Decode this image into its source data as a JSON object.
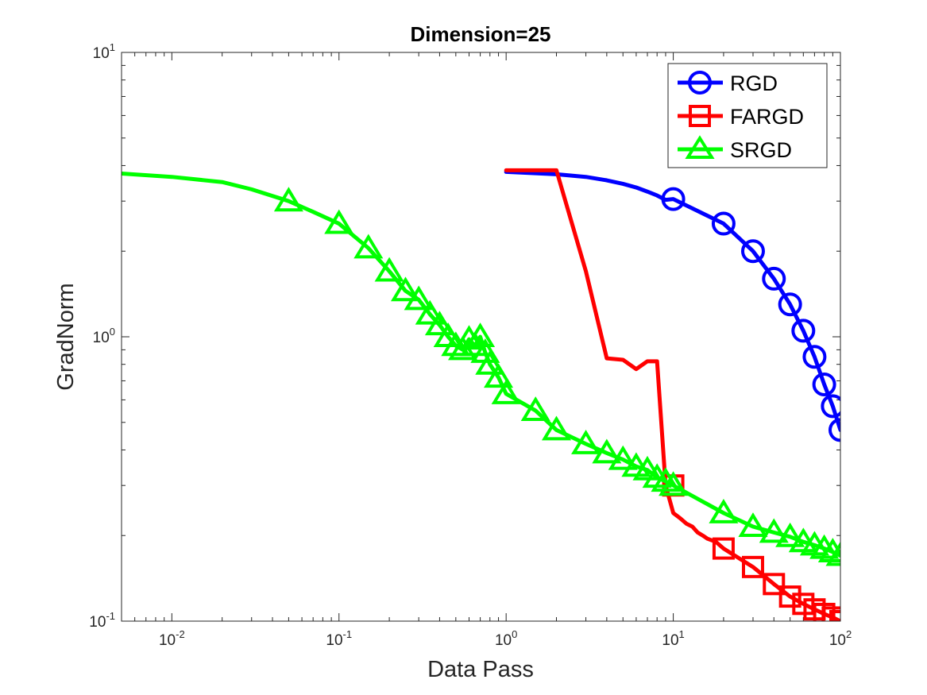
{
  "chart_data": {
    "type": "line",
    "title": "Dimension=25",
    "xlabel": "Data Pass",
    "ylabel": "GradNorm",
    "xscale": "log",
    "yscale": "log",
    "xlim": [
      0.005,
      100
    ],
    "ylim": [
      0.1,
      10
    ],
    "x_ticks": [
      {
        "base": "10",
        "exp": "-2",
        "value": 0.01
      },
      {
        "base": "10",
        "exp": "-1",
        "value": 0.1
      },
      {
        "base": "10",
        "exp": "0",
        "value": 1
      },
      {
        "base": "10",
        "exp": "1",
        "value": 10
      },
      {
        "base": "10",
        "exp": "2",
        "value": 100
      }
    ],
    "y_ticks": [
      {
        "base": "10",
        "exp": "-1",
        "value": 0.1
      },
      {
        "base": "10",
        "exp": "0",
        "value": 1
      },
      {
        "base": "10",
        "exp": "1",
        "value": 10
      }
    ],
    "legend_position": "top-right",
    "series": [
      {
        "name": "RGD",
        "color": "#0000ff",
        "marker": "circle",
        "x": [
          1,
          2,
          3,
          4,
          5,
          6,
          7,
          8,
          9,
          10,
          20,
          30,
          40,
          50,
          60,
          70,
          80,
          90,
          100
        ],
        "y": [
          3.8,
          3.73,
          3.65,
          3.55,
          3.45,
          3.35,
          3.24,
          3.14,
          3.03,
          3.05,
          2.5,
          2.0,
          1.6,
          1.3,
          1.05,
          0.85,
          0.68,
          0.57,
          0.47
        ],
        "marker_x": [
          10,
          20,
          30,
          40,
          50,
          60,
          70,
          80,
          90,
          100
        ],
        "marker_y": [
          3.05,
          2.5,
          2.0,
          1.6,
          1.3,
          1.05,
          0.85,
          0.68,
          0.57,
          0.47
        ]
      },
      {
        "name": "FARGD",
        "color": "#ff0000",
        "marker": "square",
        "x": [
          1,
          2,
          3,
          4,
          5,
          6,
          7,
          8,
          9,
          10,
          11,
          12,
          13,
          14,
          15,
          16,
          18,
          20,
          30,
          40,
          50,
          60,
          70,
          80,
          90,
          100
        ],
        "y": [
          3.85,
          3.85,
          1.7,
          0.84,
          0.83,
          0.77,
          0.82,
          0.82,
          0.3,
          0.24,
          0.23,
          0.22,
          0.215,
          0.205,
          0.2,
          0.195,
          0.19,
          0.18,
          0.155,
          0.135,
          0.122,
          0.115,
          0.11,
          0.106,
          0.103,
          0.1
        ],
        "marker_x": [
          10,
          20,
          30,
          40,
          50,
          60,
          70,
          80,
          90,
          100
        ],
        "marker_y": [
          0.3,
          0.18,
          0.155,
          0.135,
          0.122,
          0.115,
          0.11,
          0.106,
          0.103,
          0.1
        ]
      },
      {
        "name": "SRGD",
        "color": "#00ff00",
        "marker": "triangle",
        "x": [
          0.005,
          0.01,
          0.02,
          0.03,
          0.05,
          0.07,
          0.1,
          0.15,
          0.2,
          0.25,
          0.3,
          0.35,
          0.4,
          0.45,
          0.5,
          0.55,
          0.6,
          0.65,
          0.7,
          0.75,
          0.8,
          0.9,
          1,
          1.5,
          2,
          3,
          4,
          5,
          6,
          7,
          8,
          9,
          10,
          20,
          30,
          40,
          50,
          60,
          70,
          80,
          90,
          100
        ],
        "y": [
          3.75,
          3.65,
          3.5,
          3.3,
          3.0,
          2.75,
          2.5,
          2.05,
          1.7,
          1.45,
          1.35,
          1.2,
          1.1,
          1.0,
          0.93,
          0.9,
          0.98,
          0.93,
          1.0,
          0.88,
          0.8,
          0.72,
          0.63,
          0.55,
          0.47,
          0.42,
          0.39,
          0.37,
          0.35,
          0.34,
          0.32,
          0.31,
          0.3,
          0.24,
          0.215,
          0.205,
          0.198,
          0.19,
          0.185,
          0.18,
          0.175,
          0.17
        ],
        "marker_x": [
          0.05,
          0.1,
          0.15,
          0.2,
          0.25,
          0.3,
          0.35,
          0.4,
          0.45,
          0.5,
          0.55,
          0.6,
          0.65,
          0.7,
          0.75,
          0.8,
          0.9,
          1,
          1.5,
          2,
          3,
          4,
          5,
          6,
          7,
          8,
          9,
          10,
          20,
          30,
          40,
          50,
          60,
          70,
          80,
          90,
          100
        ],
        "marker_y": [
          3.0,
          2.5,
          2.05,
          1.7,
          1.45,
          1.35,
          1.2,
          1.1,
          1.0,
          0.93,
          0.9,
          0.98,
          0.93,
          1.0,
          0.88,
          0.8,
          0.72,
          0.63,
          0.55,
          0.47,
          0.42,
          0.39,
          0.37,
          0.35,
          0.34,
          0.32,
          0.31,
          0.3,
          0.24,
          0.215,
          0.205,
          0.198,
          0.19,
          0.185,
          0.18,
          0.175,
          0.17
        ]
      }
    ]
  }
}
